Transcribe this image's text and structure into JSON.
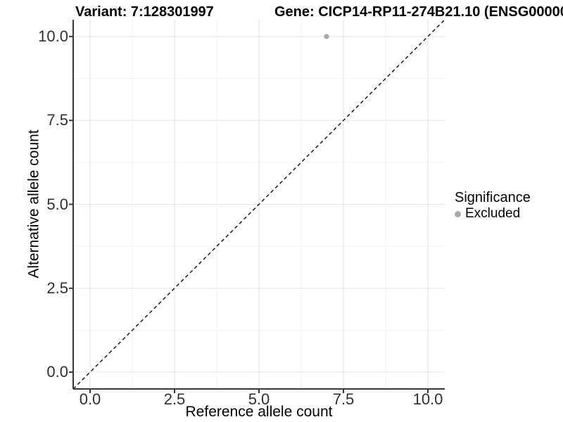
{
  "titles": {
    "variant": "Variant: 7:128301997",
    "gene": "Gene: CICP14-RP11-274B21.10 (ENSG00000"
  },
  "chart_data": {
    "type": "scatter",
    "xlabel": "Reference allele count",
    "ylabel": "Alternative allele count",
    "xlim": [
      -0.5,
      10.5
    ],
    "ylim": [
      -0.5,
      10.5
    ],
    "x_ticks": [
      0.0,
      2.5,
      5.0,
      7.5,
      10.0
    ],
    "x_tick_labels": [
      "0.0",
      "2.5",
      "5.0",
      "7.5",
      "10.0"
    ],
    "y_ticks": [
      0.0,
      2.5,
      5.0,
      7.5,
      10.0
    ],
    "y_tick_labels": [
      "0.0",
      "2.5",
      "5.0",
      "7.5",
      "10.0"
    ],
    "grid": {
      "major": true,
      "minor": true
    },
    "points": [
      {
        "x": 7,
        "y": 10,
        "series": "Excluded",
        "color": "#a8a8a8",
        "radius": 3.6
      }
    ],
    "reference_line": {
      "kind": "identity",
      "slope": 1,
      "intercept": 0,
      "style": "dashed",
      "color": "#1a1a1a"
    },
    "legend": {
      "title": "Significance",
      "position": "right",
      "items": [
        {
          "label": "Excluded",
          "color": "#a8a8a8",
          "marker": "circle"
        }
      ]
    }
  },
  "colors": {
    "axis": "#383838",
    "grid_major": "#e8e8e8",
    "grid_minor": "#f3f3f3",
    "tick_text": "#303030",
    "title_text": "#000000"
  }
}
